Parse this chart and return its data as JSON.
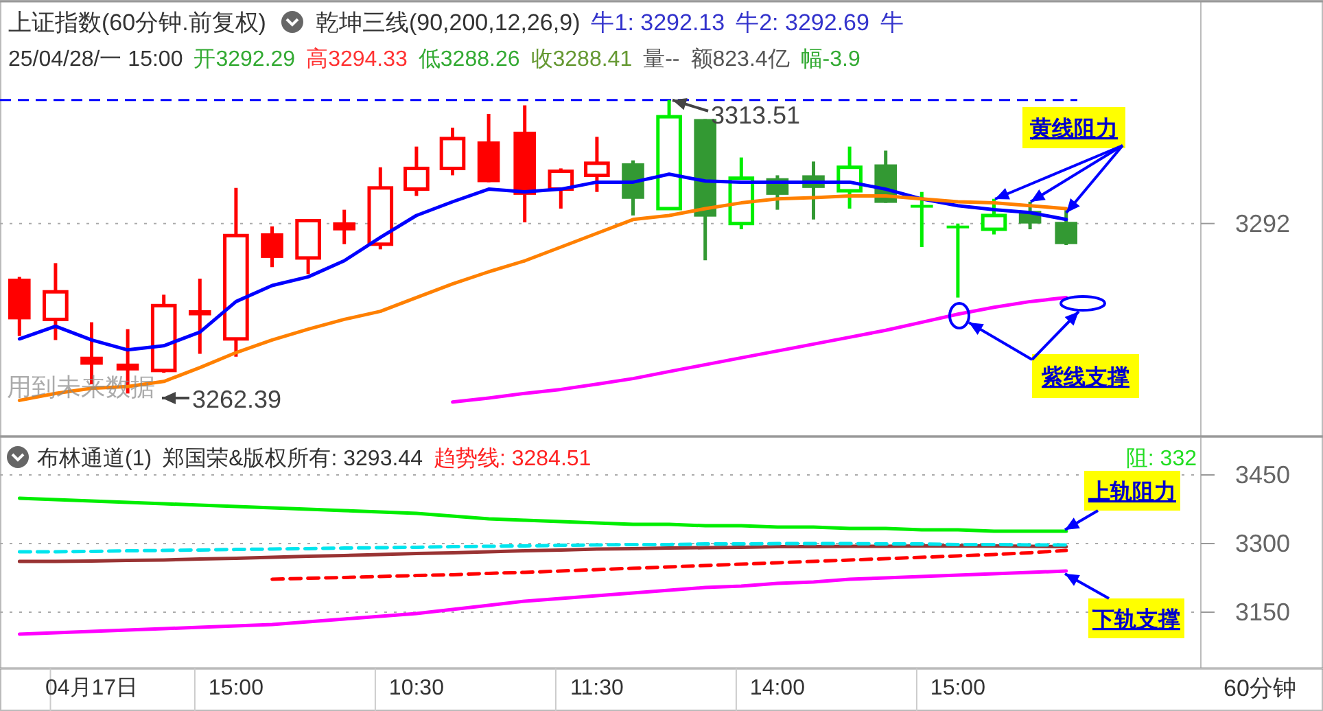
{
  "chart_data": [
    {
      "type": "candlestick",
      "title": "上证指数(60分钟.前复权)",
      "subtitle": "25/04/28/一 15:00",
      "categories": [
        null,
        null,
        null,
        null,
        null,
        null,
        null,
        null,
        null,
        null,
        null,
        null,
        null,
        null,
        null,
        null,
        null,
        null,
        null,
        null,
        null,
        null,
        null,
        null,
        null,
        null,
        null,
        null,
        null,
        null
      ],
      "ylim": [
        3254.9,
        3330.7
      ],
      "ohlc": [
        [
          3282.4,
          3282.7,
          3272.4,
          3275.3
        ],
        [
          3275.3,
          3285.1,
          3271.7,
          3280.1
        ],
        [
          3268.8,
          3274.8,
          3264.0,
          3267.4
        ],
        [
          3267.6,
          3273.6,
          3262.39,
          3266.4
        ],
        [
          3266.4,
          3279.6,
          3266.0,
          3277.7
        ],
        [
          3276.9,
          3282.4,
          3269.3,
          3276.0
        ],
        [
          3271.9,
          3298.2,
          3268.8,
          3289.9
        ],
        [
          3290.3,
          3291.5,
          3284.4,
          3286.0
        ],
        [
          3286.0,
          3292.5,
          3283.2,
          3292.5
        ],
        [
          3292.2,
          3294.4,
          3288.4,
          3290.8
        ],
        [
          3288.4,
          3301.8,
          3287.5,
          3298.2
        ],
        [
          3298.0,
          3305.4,
          3296.8,
          3301.6
        ],
        [
          3301.6,
          3308.7,
          3300.4,
          3306.8
        ],
        [
          3306.3,
          3311.1,
          3299.2,
          3299.2
        ],
        [
          3308.0,
          3312.6,
          3292.2,
          3297.0
        ],
        [
          3298.0,
          3301.6,
          3294.6,
          3301.1
        ],
        [
          3300.4,
          3307.1,
          3297.5,
          3302.5
        ],
        [
          3302.5,
          3303.0,
          3293.4,
          3296.3
        ],
        [
          3294.6,
          3313.51,
          3294.4,
          3310.6
        ],
        [
          3310.2,
          3310.2,
          3285.6,
          3293.2
        ],
        [
          3292.0,
          3303.5,
          3291.0,
          3299.9
        ],
        [
          3299.9,
          3300.4,
          3294.4,
          3297.0
        ],
        [
          3300.4,
          3302.8,
          3292.7,
          3298.2
        ],
        [
          3297.7,
          3305.4,
          3294.6,
          3301.8
        ],
        [
          3302.3,
          3304.7,
          3295.6,
          3295.6
        ],
        [
          3295.1,
          3297.5,
          3287.9,
          3294.9
        ],
        [
          3291.5,
          3292.0,
          3279.1,
          3291.3
        ],
        [
          3291.0,
          3296.3,
          3290.1,
          3293.4
        ],
        [
          3294.2,
          3295.8,
          3291.0,
          3292.0
        ],
        [
          3292.29,
          3294.33,
          3288.26,
          3288.41
        ]
      ],
      "colors": [
        "#ff0000",
        "#ff0000",
        "#ff0000",
        "#ff0000",
        "#ff0000",
        "#ff0000",
        "#ff0000",
        "#ff0000",
        "#ff0000",
        "#ff0000",
        "#ff0000",
        "#ff0000",
        "#ff0000",
        "#ff0000",
        "#ff0000",
        "#ff0000",
        "#ff0000",
        "#339933",
        "#00ee00",
        "#339933",
        "#00ee00",
        "#339933",
        "#339933",
        "#00ee00",
        "#339933",
        "#00ee00",
        "#00ee00",
        "#00ee00",
        "#339933",
        "#339933"
      ],
      "series": [
        {
          "type": "line",
          "color": "#0000ff",
          "values": [
            3271.9,
            3274.1,
            3271.7,
            3270.0,
            3270.7,
            3273.1,
            3278.4,
            3281.2,
            3282.7,
            3285.5,
            3289.6,
            3293.4,
            3295.8,
            3298.0,
            3297.5,
            3298.0,
            3299.2,
            3299.2,
            3300.6,
            3299.4,
            3299.2,
            3299.2,
            3299.2,
            3299.2,
            3298.0,
            3296.3,
            3295.1,
            3294.4,
            3293.9,
            3292.7
          ]
        },
        {
          "type": "line",
          "color": "#ff8000",
          "values": [
            3261.2,
            3262.4,
            3263.3,
            3263.6,
            3264.5,
            3266.9,
            3269.5,
            3271.7,
            3273.6,
            3275.3,
            3276.7,
            3279.1,
            3281.5,
            3283.6,
            3285.5,
            3287.9,
            3290.3,
            3292.7,
            3293.4,
            3294.6,
            3295.6,
            3296.3,
            3296.5,
            3296.8,
            3296.8,
            3296.3,
            3295.8,
            3295.6,
            3295.1,
            3294.6
          ]
        },
        {
          "type": "line",
          "color": "#ff00ff",
          "values": [
            null,
            null,
            null,
            null,
            null,
            null,
            null,
            null,
            null,
            null,
            null,
            null,
            3260.9,
            3261.6,
            3262.4,
            3263.1,
            3264.0,
            3265.0,
            3266.2,
            3267.4,
            3268.6,
            3269.8,
            3271.0,
            3272.2,
            3273.4,
            3274.8,
            3276.2,
            3277.4,
            3278.4,
            3279.1
          ]
        }
      ],
      "ref_lines": [
        {
          "axis": "y",
          "value": 3313.51,
          "color": "#0000ff",
          "line_style": "dashed"
        },
        {
          "axis": "y",
          "value": 3292,
          "label": "3292",
          "color": "#aaaaaa",
          "line_style": "dotted"
        }
      ],
      "annotations": [
        "乾坤三线(90,200,12,26,9)",
        "牛1: 3292.13",
        "牛2: 3292.69",
        "牛",
        "开3292.29",
        "高3294.33",
        "低3288.26",
        "收3288.41",
        "量--",
        "额823.4亿",
        "幅-3.9",
        {
          "text": "3313.51",
          "y": 3313.51
        },
        "3262.39",
        "用到未来数据",
        "黄线阻力",
        "紫线支撑"
      ]
    },
    {
      "type": "line",
      "categories": [
        null,
        null,
        "04月17日",
        null,
        null,
        null,
        "15:00",
        null,
        null,
        null,
        null,
        "10:30",
        null,
        null,
        null,
        null,
        "11:30",
        null,
        null,
        null,
        null,
        "14:00",
        null,
        null,
        null,
        null,
        "15:00",
        null,
        null,
        null
      ],
      "ylim": [
        3027,
        3534
      ],
      "yticks": [
        3450,
        3300,
        3150
      ],
      "grid": "y",
      "series": [
        {
          "color": "#00ee00",
          "values": [
            3399,
            3396,
            3393,
            3390,
            3387,
            3384,
            3381,
            3378,
            3375,
            3372,
            3369,
            3366,
            3360,
            3354,
            3351,
            3348,
            3345,
            3342,
            3342,
            3339,
            3339,
            3336,
            3336,
            3333,
            3333,
            3330,
            3330,
            3327,
            3327,
            3327
          ]
        },
        {
          "color": "#993333",
          "values": [
            3261,
            3261,
            3262,
            3263,
            3264,
            3266,
            3268,
            3270,
            3272,
            3274,
            3276,
            3278,
            3280,
            3282,
            3284,
            3286,
            3288,
            3289,
            3290,
            3291,
            3292,
            3293,
            3293,
            3294,
            3294,
            3295,
            3295,
            3295,
            3294,
            3293
          ]
        },
        {
          "color": "#00e5ee",
          "line_style": "dashed",
          "values": [
            3282,
            3282,
            3283,
            3284,
            3285,
            3286,
            3287,
            3288,
            3289,
            3290,
            3291,
            3292,
            3293,
            3294,
            3295,
            3296,
            3297,
            3298,
            3298,
            3299,
            3299,
            3300,
            3300,
            3300,
            3299,
            3299,
            3298,
            3298,
            3297,
            3297
          ]
        },
        {
          "color": "#ff0000",
          "line_style": "dashed",
          "values": [
            null,
            null,
            null,
            null,
            null,
            null,
            null,
            3222,
            3224,
            3226,
            3228,
            3230,
            3232,
            3235,
            3237,
            3240,
            3243,
            3246,
            3249,
            3252,
            3255,
            3258,
            3261,
            3264,
            3267,
            3270,
            3273,
            3276,
            3280,
            3285
          ]
        },
        {
          "color": "#ff00ff",
          "values": [
            3102,
            3105,
            3108,
            3111,
            3114,
            3117,
            3120,
            3123,
            3129,
            3135,
            3141,
            3147,
            3156,
            3165,
            3174,
            3180,
            3186,
            3192,
            3198,
            3204,
            3207,
            3213,
            3216,
            3222,
            3225,
            3228,
            3231,
            3234,
            3237,
            3240
          ]
        }
      ],
      "annotations": [
        "布林通道(1)",
        "郑国荣&版权所有: 3293.44",
        "趋势线: 3284.51",
        "阻: 332",
        "上轨阻力",
        "下轨支撑",
        "60分钟"
      ]
    }
  ]
}
